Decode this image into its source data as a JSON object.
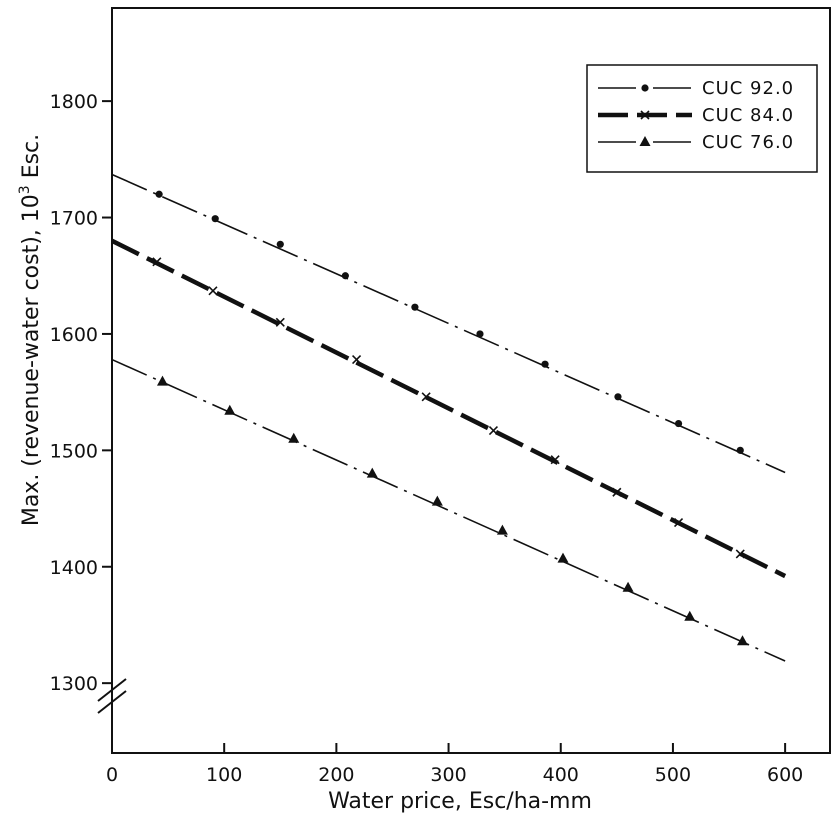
{
  "chart_data": {
    "type": "line",
    "title": "",
    "xlabel": "Water price, Esc/ha-mm",
    "ylabel_main": "Max. (revenue-water cost), 10",
    "ylabel_sup": "3",
    "ylabel_unit": " Esc.",
    "xlim": [
      0,
      640
    ],
    "ylim": [
      1240,
      1880
    ],
    "xticks": [
      "0",
      "100",
      "200",
      "300",
      "400",
      "500",
      "600"
    ],
    "yticks": [
      "1300",
      "1400",
      "1500",
      "1600",
      "1700",
      "1800"
    ],
    "axis_break": "y",
    "grid": false,
    "legend_position": "top-right",
    "series": [
      {
        "name": "CUC 92.0",
        "marker": "circle",
        "dash": "long-dash-dot",
        "line": {
          "x": [
            0,
            600
          ],
          "y": [
            1737,
            1481
          ]
        },
        "points": {
          "x": [
            42,
            92,
            150,
            208,
            270,
            328,
            386,
            451,
            505,
            560
          ],
          "y": [
            1720,
            1699,
            1677,
            1650,
            1623,
            1600,
            1574,
            1546,
            1523,
            1500
          ]
        }
      },
      {
        "name": "CUC 84.0",
        "marker": "x",
        "dash": "thick-dash",
        "line": {
          "x": [
            0,
            600
          ],
          "y": [
            1680,
            1392
          ]
        },
        "points": {
          "x": [
            40,
            90,
            150,
            218,
            280,
            340,
            395,
            450,
            505,
            560
          ],
          "y": [
            1662,
            1637,
            1610,
            1578,
            1546,
            1517,
            1492,
            1464,
            1438,
            1411
          ]
        }
      },
      {
        "name": "CUC 76.0",
        "marker": "triangle",
        "dash": "long-dash-dot",
        "line": {
          "x": [
            0,
            600
          ],
          "y": [
            1578,
            1319
          ]
        },
        "points": {
          "x": [
            45,
            105,
            162,
            232,
            290,
            348,
            402,
            460,
            515,
            562
          ],
          "y": [
            1559,
            1534,
            1510,
            1480,
            1456,
            1431,
            1407,
            1382,
            1357,
            1336
          ]
        }
      }
    ]
  }
}
